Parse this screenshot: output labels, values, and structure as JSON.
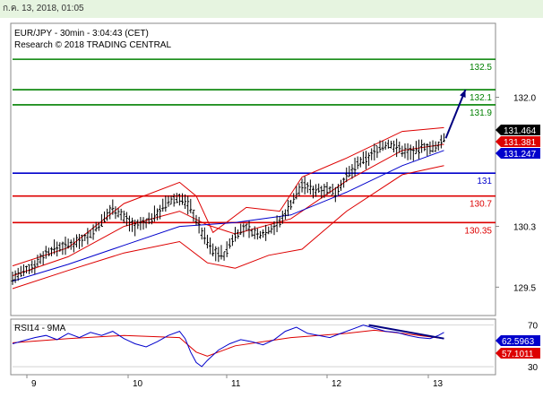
{
  "header": {
    "timestamp": "ก.ค. 13, 2018, 01:05"
  },
  "chart_data": [
    {
      "type": "line",
      "subtype": "candlestick",
      "title": "EUR/JPY - 30min - 3:04:43 (CET)",
      "subtitle": "Research © 2018 TRADING CENTRAL",
      "y_ticks": [
        {
          "value": 132.0,
          "label": "132.0"
        },
        {
          "value": 130.3,
          "label": "130.3"
        },
        {
          "value": 129.5,
          "label": "129.5"
        }
      ],
      "ylim": [
        129.15,
        132.95
      ],
      "x_ticks": [
        "9",
        "10",
        "11",
        "12",
        "13"
      ],
      "levels": [
        {
          "value": 132.5,
          "label": "132.5",
          "color": "#008000"
        },
        {
          "value": 132.1,
          "label": "132.1",
          "color": "#008000"
        },
        {
          "value": 131.9,
          "label": "131.9",
          "color": "#008000"
        },
        {
          "value": 131.0,
          "label": "131",
          "color": "#0000cc"
        },
        {
          "value": 130.7,
          "label": "130.7",
          "color": "#dd0000"
        },
        {
          "value": 130.35,
          "label": "130.35",
          "color": "#dd0000"
        }
      ],
      "price_tags": [
        {
          "value": 131.464,
          "label": "131.464",
          "bg": "#000000",
          "fg": "#ffffff"
        },
        {
          "value": 131.381,
          "label": "131.381",
          "bg": "#dd0000",
          "fg": "#ffffff"
        },
        {
          "value": 131.247,
          "label": "131.247",
          "bg": "#0000cc",
          "fg": "#ffffff"
        }
      ],
      "price_path": [
        [
          0,
          129.62
        ],
        [
          4,
          129.7
        ],
        [
          8,
          129.8
        ],
        [
          12,
          129.95
        ],
        [
          16,
          130.02
        ],
        [
          20,
          130.05
        ],
        [
          24,
          130.12
        ],
        [
          28,
          130.2
        ],
        [
          32,
          130.35
        ],
        [
          36,
          130.55
        ],
        [
          40,
          130.42
        ],
        [
          44,
          130.3
        ],
        [
          48,
          130.35
        ],
        [
          52,
          130.48
        ],
        [
          56,
          130.62
        ],
        [
          60,
          130.68
        ],
        [
          64,
          130.55
        ],
        [
          68,
          130.22
        ],
        [
          72,
          129.98
        ],
        [
          76,
          129.92
        ],
        [
          80,
          130.2
        ],
        [
          84,
          130.28
        ],
        [
          88,
          130.18
        ],
        [
          92,
          130.25
        ],
        [
          96,
          130.35
        ],
        [
          100,
          130.6
        ],
        [
          104,
          130.85
        ],
        [
          108,
          130.78
        ],
        [
          112,
          130.8
        ],
        [
          116,
          130.75
        ],
        [
          120,
          130.95
        ],
        [
          124,
          131.12
        ],
        [
          128,
          131.2
        ],
        [
          132,
          131.35
        ],
        [
          136,
          131.38
        ],
        [
          140,
          131.3
        ],
        [
          144,
          131.28
        ],
        [
          148,
          131.35
        ],
        [
          152,
          131.32
        ],
        [
          155,
          131.46
        ]
      ],
      "forecast": {
        "from": 131.46,
        "to": 132.1
      },
      "moving_average_blue": [
        [
          0,
          129.58
        ],
        [
          20,
          129.8
        ],
        [
          40,
          130.05
        ],
        [
          60,
          130.3
        ],
        [
          80,
          130.35
        ],
        [
          100,
          130.45
        ],
        [
          120,
          130.75
        ],
        [
          140,
          131.1
        ],
        [
          155,
          131.3
        ]
      ],
      "moving_average_red": [
        [
          0,
          129.65
        ],
        [
          20,
          129.9
        ],
        [
          40,
          130.3
        ],
        [
          60,
          130.5
        ],
        [
          70,
          130.32
        ],
        [
          80,
          130.2
        ],
        [
          100,
          130.4
        ],
        [
          120,
          130.9
        ],
        [
          140,
          131.3
        ],
        [
          155,
          131.38
        ]
      ],
      "band_upper": [
        [
          0,
          129.78
        ],
        [
          20,
          130.02
        ],
        [
          40,
          130.6
        ],
        [
          60,
          130.88
        ],
        [
          66,
          130.7
        ],
        [
          72,
          130.22
        ],
        [
          84,
          130.55
        ],
        [
          96,
          130.5
        ],
        [
          104,
          130.95
        ],
        [
          120,
          131.2
        ],
        [
          140,
          131.55
        ],
        [
          155,
          131.6
        ]
      ],
      "band_lower": [
        [
          0,
          129.48
        ],
        [
          20,
          129.72
        ],
        [
          40,
          129.95
        ],
        [
          60,
          130.1
        ],
        [
          70,
          129.82
        ],
        [
          80,
          129.75
        ],
        [
          92,
          129.92
        ],
        [
          104,
          130.0
        ],
        [
          120,
          130.5
        ],
        [
          140,
          130.98
        ],
        [
          155,
          131.1
        ]
      ]
    },
    {
      "type": "line",
      "title": "RSI14 - 9MA",
      "y_ticks": [
        {
          "value": 70,
          "label": "70"
        },
        {
          "value": 30,
          "label": "30"
        }
      ],
      "ylim": [
        24,
        74
      ],
      "price_tags": [
        {
          "value": 62.5963,
          "label": "62.5963",
          "bg": "#0000cc",
          "fg": "#ffffff"
        },
        {
          "value": 57.1011,
          "label": "57.1011",
          "bg": "#dd0000",
          "fg": "#ffffff"
        }
      ],
      "rsi": [
        [
          0,
          52
        ],
        [
          4,
          55
        ],
        [
          8,
          58
        ],
        [
          12,
          60
        ],
        [
          16,
          56
        ],
        [
          20,
          62
        ],
        [
          24,
          58
        ],
        [
          28,
          63
        ],
        [
          32,
          60
        ],
        [
          36,
          64
        ],
        [
          40,
          57
        ],
        [
          44,
          52
        ],
        [
          48,
          49
        ],
        [
          52,
          54
        ],
        [
          56,
          60
        ],
        [
          60,
          64
        ],
        [
          62,
          57
        ],
        [
          64,
          44
        ],
        [
          66,
          34
        ],
        [
          68,
          30
        ],
        [
          70,
          36
        ],
        [
          74,
          46
        ],
        [
          78,
          52
        ],
        [
          82,
          56
        ],
        [
          86,
          54
        ],
        [
          90,
          51
        ],
        [
          94,
          56
        ],
        [
          98,
          64
        ],
        [
          102,
          68
        ],
        [
          106,
          62
        ],
        [
          110,
          60
        ],
        [
          114,
          58
        ],
        [
          118,
          62
        ],
        [
          122,
          66
        ],
        [
          126,
          70
        ],
        [
          130,
          67
        ],
        [
          134,
          64
        ],
        [
          138,
          63
        ],
        [
          142,
          60
        ],
        [
          146,
          58
        ],
        [
          150,
          57
        ],
        [
          153,
          60
        ],
        [
          155,
          63
        ]
      ],
      "rsi_ma": [
        [
          0,
          53
        ],
        [
          20,
          57
        ],
        [
          40,
          60
        ],
        [
          60,
          58
        ],
        [
          66,
          44
        ],
        [
          70,
          40
        ],
        [
          80,
          50
        ],
        [
          100,
          58
        ],
        [
          120,
          62
        ],
        [
          130,
          65
        ],
        [
          140,
          62
        ],
        [
          155,
          57
        ]
      ],
      "divergence": [
        [
          128,
          70
        ],
        [
          155,
          57
        ]
      ]
    }
  ]
}
